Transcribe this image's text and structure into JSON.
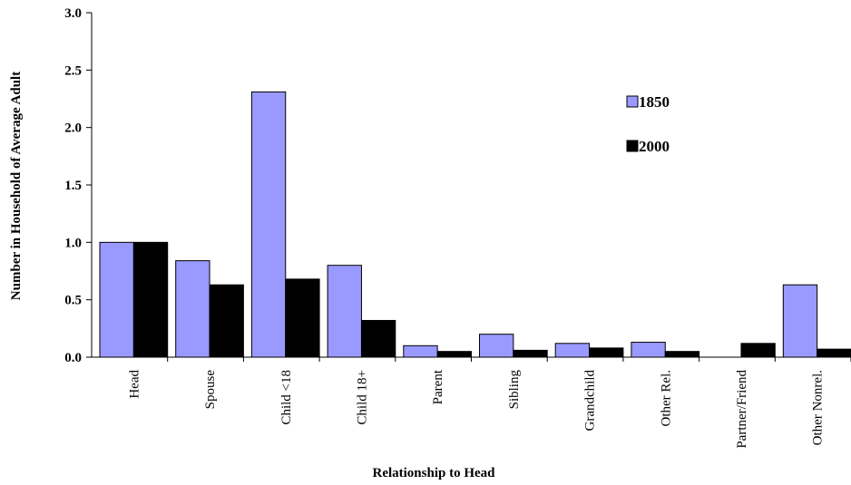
{
  "chart_data": {
    "type": "bar",
    "categories": [
      "Head",
      "Spouse",
      "Child <18",
      "Child 18+",
      "Parent",
      "Sibling",
      "Grandchild",
      "Other Rel.",
      "Partner/Friend",
      "Other Nonrel."
    ],
    "series": [
      {
        "name": "1850",
        "color": "#9999ff",
        "values": [
          1.0,
          0.84,
          2.31,
          0.8,
          0.1,
          0.2,
          0.12,
          0.13,
          0.0,
          0.63
        ]
      },
      {
        "name": "2000",
        "color": "#000000",
        "values": [
          1.0,
          0.63,
          0.68,
          0.32,
          0.05,
          0.06,
          0.08,
          0.05,
          0.12,
          0.07
        ]
      }
    ],
    "xlabel": "Relationship to Head",
    "ylabel": "Number in Household of Average Adult",
    "ylim": [
      0,
      3.0
    ],
    "yticks": [
      "0.0",
      "0.5",
      "1.0",
      "1.5",
      "2.0",
      "2.5",
      "3.0"
    ],
    "legend_position": "top-right",
    "grid": false
  }
}
